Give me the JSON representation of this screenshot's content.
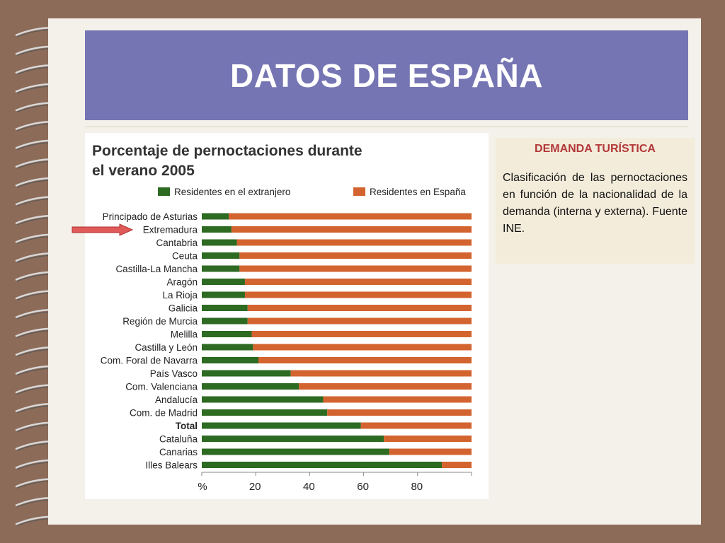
{
  "title": "DATOS DE ESPAÑA",
  "info": {
    "heading": "DEMANDA TURÍSTICA",
    "text": "Clasificación de las pernoctaciones en función de la nacionalidad de la demanda (interna y externa). Fuente INE."
  },
  "colors": {
    "banner": "#7575b3",
    "extranjero": "#2d6a22",
    "espana": "#d3642f",
    "info_heading": "#b23838",
    "arrow": "#e05a5a"
  },
  "highlighted_region": "Extremadura",
  "chart_data": {
    "type": "bar",
    "orientation": "horizontal",
    "stacked": true,
    "title": "Porcentaje de pernoctaciones durante el verano 2005",
    "title_lines": [
      "Porcentaje de pernoctaciones durante",
      "el verano 2005"
    ],
    "legend": [
      "Residentes en el extranjero",
      "Residentes en España"
    ],
    "legend_position": "top",
    "xlim": [
      0,
      100
    ],
    "x_axis_label": "%",
    "x_ticks": [
      20,
      40,
      60,
      80
    ],
    "grid": false,
    "categories": [
      "Principado de Asturias",
      "Extremadura",
      "Cantabria",
      "Ceuta",
      "Castilla-La Mancha",
      "Aragón",
      "La Rioja",
      "Galicia",
      "Región de Murcia",
      "Melilla",
      "Castilla y León",
      "Com. Foral de Navarra",
      "País Vasco",
      "Com. Valenciana",
      "Andalucía",
      "Com. de Madrid",
      "Total",
      "Cataluña",
      "Canarias",
      "Illes Balears"
    ],
    "bold_categories": [
      "Total"
    ],
    "series": [
      {
        "name": "Residentes en el extranjero",
        "color": "#2d6a22",
        "values": [
          10,
          11,
          13,
          14,
          14,
          16,
          16,
          17,
          17,
          18.5,
          19,
          21,
          33,
          36,
          45,
          46.5,
          59,
          67.5,
          69.5,
          89
        ]
      },
      {
        "name": "Residentes en España",
        "color": "#d3642f",
        "values": [
          90,
          89,
          87,
          86,
          86,
          84,
          84,
          83,
          83,
          81.5,
          81,
          79,
          67,
          64,
          55,
          53.5,
          41,
          32.5,
          30.5,
          11
        ]
      }
    ]
  }
}
